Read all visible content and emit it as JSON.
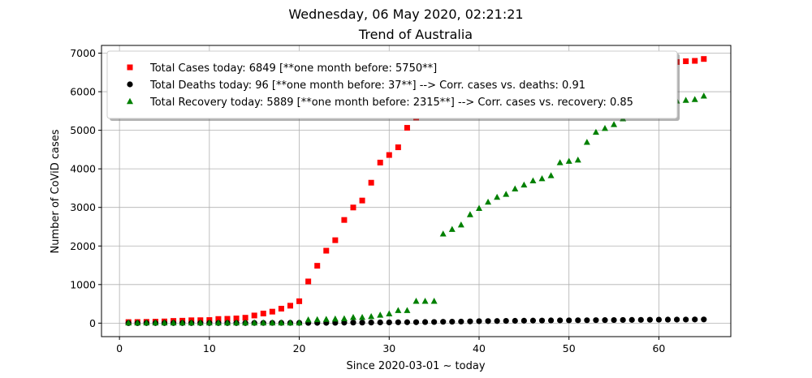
{
  "suptitle": "Wednesday, 06 May 2020, 02:21:21",
  "chart_data": {
    "type": "scatter",
    "title": "Trend of Australia",
    "xlabel": "Since 2020-03-01 ~ today",
    "ylabel": "Number of CoViD cases",
    "xlim": [
      -2,
      68
    ],
    "ylim": [
      -350,
      7200
    ],
    "xticks": [
      0,
      10,
      20,
      30,
      40,
      50,
      60
    ],
    "yticks": [
      0,
      1000,
      2000,
      3000,
      4000,
      5000,
      6000,
      7000
    ],
    "grid": true,
    "legend_position": "top-left",
    "series": [
      {
        "name": "Total Cases today: 6849 [**one month before: 5750**]",
        "color": "#ff0000",
        "marker": "square",
        "x": [
          1,
          2,
          3,
          4,
          5,
          6,
          7,
          8,
          9,
          10,
          11,
          12,
          13,
          14,
          15,
          16,
          17,
          18,
          19,
          20,
          21,
          22,
          23,
          24,
          25,
          26,
          27,
          28,
          29,
          30,
          31,
          32,
          33,
          34,
          35,
          36,
          37,
          38,
          39,
          40,
          41,
          42,
          43,
          44,
          45,
          46,
          47,
          48,
          49,
          50,
          51,
          52,
          53,
          54,
          55,
          56,
          57,
          58,
          59,
          60,
          61,
          62,
          63,
          64,
          65
        ],
        "values": [
          27,
          29,
          33,
          39,
          44,
          57,
          63,
          74,
          76,
          80,
          107,
          112,
          122,
          140,
          198,
          249,
          298,
          375,
          452,
          568,
          1081,
          1487,
          1878,
          2150,
          2675,
          2998,
          3179,
          3641,
          4163,
          4359,
          4559,
          5064,
          5330,
          5550,
          5750,
          5900,
          6000,
          6100,
          6150,
          6200,
          6250,
          6300,
          6350,
          6400,
          6450,
          6480,
          6520,
          6550,
          6580,
          6600,
          6620,
          6650,
          6670,
          6690,
          6700,
          6710,
          6720,
          6730,
          6740,
          6750,
          6760,
          6770,
          6790,
          6800,
          6849
        ]
      },
      {
        "name": "Total Deaths today: 96 [**one month before: 37**] --> Corr. cases vs. deaths: 0.91",
        "color": "#000000",
        "marker": "circle",
        "x": [
          1,
          2,
          3,
          4,
          5,
          6,
          7,
          8,
          9,
          10,
          11,
          12,
          13,
          14,
          15,
          16,
          17,
          18,
          19,
          20,
          21,
          22,
          23,
          24,
          25,
          26,
          27,
          28,
          29,
          30,
          31,
          32,
          33,
          34,
          35,
          36,
          37,
          38,
          39,
          40,
          41,
          42,
          43,
          44,
          45,
          46,
          47,
          48,
          49,
          50,
          51,
          52,
          53,
          54,
          55,
          56,
          57,
          58,
          59,
          60,
          61,
          62,
          63,
          64,
          65
        ],
        "values": [
          1,
          1,
          2,
          2,
          2,
          2,
          3,
          3,
          3,
          3,
          3,
          3,
          3,
          3,
          5,
          5,
          6,
          7,
          7,
          7,
          7,
          8,
          8,
          9,
          13,
          14,
          14,
          16,
          18,
          19,
          22,
          23,
          24,
          28,
          30,
          35,
          37,
          40,
          45,
          50,
          53,
          55,
          58,
          60,
          63,
          65,
          67,
          70,
          71,
          72,
          74,
          75,
          77,
          78,
          80,
          82,
          84,
          85,
          88,
          90,
          91,
          92,
          93,
          95,
          96
        ]
      },
      {
        "name": "Total Recovery today: 5889 [**one month before: 2315**] --> Corr. cases vs. recovery: 0.85",
        "color": "#008000",
        "marker": "triangle",
        "x": [
          1,
          2,
          3,
          4,
          5,
          6,
          7,
          8,
          9,
          10,
          11,
          12,
          13,
          14,
          15,
          16,
          17,
          18,
          19,
          20,
          21,
          22,
          23,
          24,
          25,
          26,
          27,
          28,
          29,
          30,
          31,
          32,
          33,
          34,
          35,
          36,
          37,
          38,
          39,
          40,
          41,
          42,
          43,
          44,
          45,
          46,
          47,
          48,
          49,
          50,
          51,
          52,
          53,
          54,
          55,
          56,
          57,
          58,
          59,
          60,
          61,
          62,
          63,
          64,
          65
        ],
        "values": [
          8,
          8,
          8,
          8,
          8,
          8,
          8,
          8,
          8,
          8,
          8,
          8,
          8,
          8,
          8,
          8,
          8,
          8,
          8,
          8,
          88,
          92,
          100,
          110,
          117,
          150,
          150,
          172,
          210,
          244,
          330,
          330,
          570,
          570,
          570,
          2315,
          2432,
          2548,
          2815,
          2978,
          3139,
          3265,
          3343,
          3483,
          3583,
          3692,
          3747,
          3825,
          4163,
          4200,
          4230,
          4690,
          4950,
          5050,
          5150,
          5300,
          5500,
          5560,
          5620,
          5680,
          5720,
          5760,
          5780,
          5800,
          5889
        ]
      }
    ]
  }
}
